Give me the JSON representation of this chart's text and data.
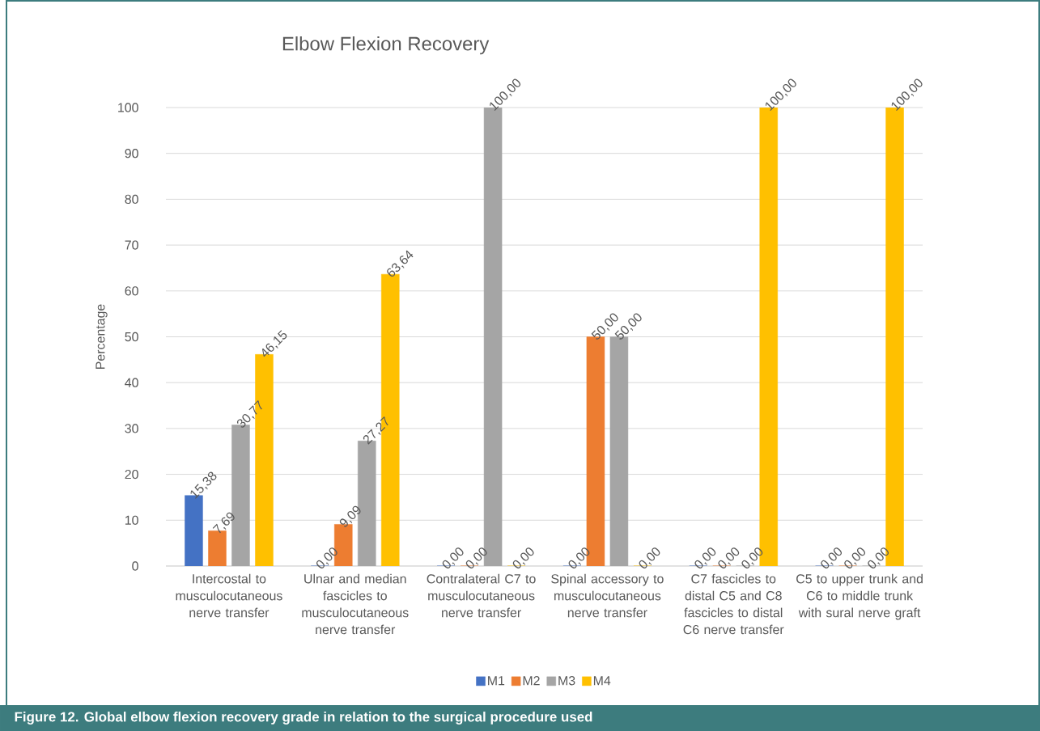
{
  "chart_data": {
    "type": "bar",
    "title": "Elbow Flexion Recovery",
    "ylabel": "Percentage",
    "categories": [
      "Intercostal to musculocutaneous nerve transfer",
      "Ulnar and median fascicles to musculocutaneous nerve transfer",
      "Contralateral C7 to musculocutaneous nerve transfer",
      "Spinal accessory to musculocutaneous nerve transfer",
      "C7 fascicles to distal C5 and C8 fascicles to distal C6 nerve transfer",
      "C5 to upper trunk and C6 to middle trunk with sural nerve graft"
    ],
    "series": [
      {
        "name": "M1",
        "color": "#4472c4",
        "values": [
          15.38,
          0,
          0,
          0,
          0,
          0
        ],
        "value_labels": [
          "15,38",
          "0,00",
          "0,00",
          "0,00",
          "0,00",
          "0,00"
        ]
      },
      {
        "name": "M2",
        "color": "#ed7d31",
        "values": [
          7.69,
          9.09,
          0,
          50,
          0,
          0
        ],
        "value_labels": [
          "7,69",
          "9,09",
          "0,00",
          "50,00",
          "0,00",
          "0,00"
        ]
      },
      {
        "name": "M3",
        "color": "#a5a5a5",
        "values": [
          30.77,
          27.27,
          100,
          50,
          0,
          0
        ],
        "value_labels": [
          "30,77",
          "27,27",
          "100,00",
          "50,00",
          "0,00",
          "0,00"
        ]
      },
      {
        "name": "M4",
        "color": "#ffc000",
        "values": [
          46.15,
          63.64,
          0,
          0,
          100,
          100
        ],
        "value_labels": [
          "46,15",
          "63,64",
          "0,00",
          "0,00",
          "100,00",
          "100,00"
        ]
      }
    ],
    "ylim": [
      0,
      100
    ],
    "yticks": [
      0,
      10,
      20,
      30,
      40,
      50,
      60,
      70,
      80,
      90,
      100
    ],
    "grid": "y",
    "legend": "bottom",
    "annotations": [
      "Figure 12. Global elbow flexion recovery grade in relation to the surgical procedure used"
    ]
  }
}
